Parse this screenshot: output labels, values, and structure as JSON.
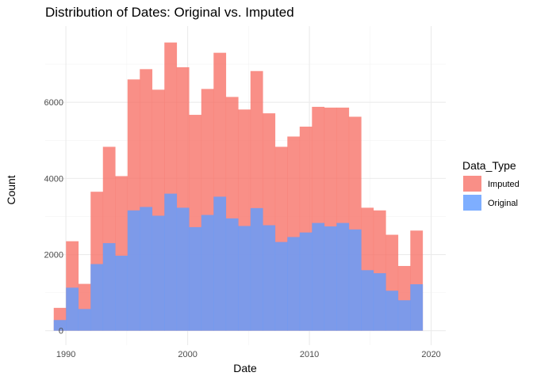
{
  "chart_data": {
    "type": "bar",
    "title": "Distribution of Dates: Original vs. Imputed",
    "xlabel": "Date",
    "ylabel": "Count",
    "xlim": [
      1988.3,
      2021.2
    ],
    "ylim": [
      -380,
      8000
    ],
    "x_ticks": [
      1990,
      2000,
      2010,
      2020
    ],
    "y_ticks": [
      0,
      2000,
      4000,
      6000
    ],
    "grid": true,
    "legend": {
      "title": "Data_Type",
      "placement": "right"
    },
    "bin_width": 1.01,
    "bin_starts": [
      1989.0,
      1990.01,
      1991.02,
      1992.03,
      1993.04,
      1994.05,
      1995.06,
      1996.07,
      1997.08,
      1998.09,
      1999.1,
      2000.11,
      2001.12,
      2002.13,
      2003.14,
      2004.15,
      2005.16,
      2006.17,
      2007.18,
      2008.19,
      2009.2,
      2010.21,
      2011.22,
      2012.23,
      2013.24,
      2014.25,
      2015.26,
      2016.27,
      2017.28,
      2018.29
    ],
    "series": [
      {
        "name": "Imputed",
        "color": "#F8766D",
        "values": [
          600,
          2350,
          1230,
          3650,
          4830,
          4060,
          6600,
          6870,
          6330,
          7570,
          6920,
          5670,
          6350,
          7300,
          6140,
          5810,
          6820,
          5710,
          4830,
          5100,
          5360,
          5880,
          5860,
          5860,
          5620,
          3230,
          3160,
          2520,
          1700,
          2630
        ]
      },
      {
        "name": "Original",
        "color": "#619CFF",
        "values": [
          280,
          1130,
          570,
          1750,
          2300,
          1970,
          3160,
          3250,
          3020,
          3600,
          3230,
          2720,
          3040,
          3520,
          2950,
          2750,
          3220,
          2770,
          2330,
          2460,
          2580,
          2830,
          2740,
          2830,
          2660,
          1590,
          1510,
          1050,
          800,
          1220
        ]
      }
    ]
  }
}
